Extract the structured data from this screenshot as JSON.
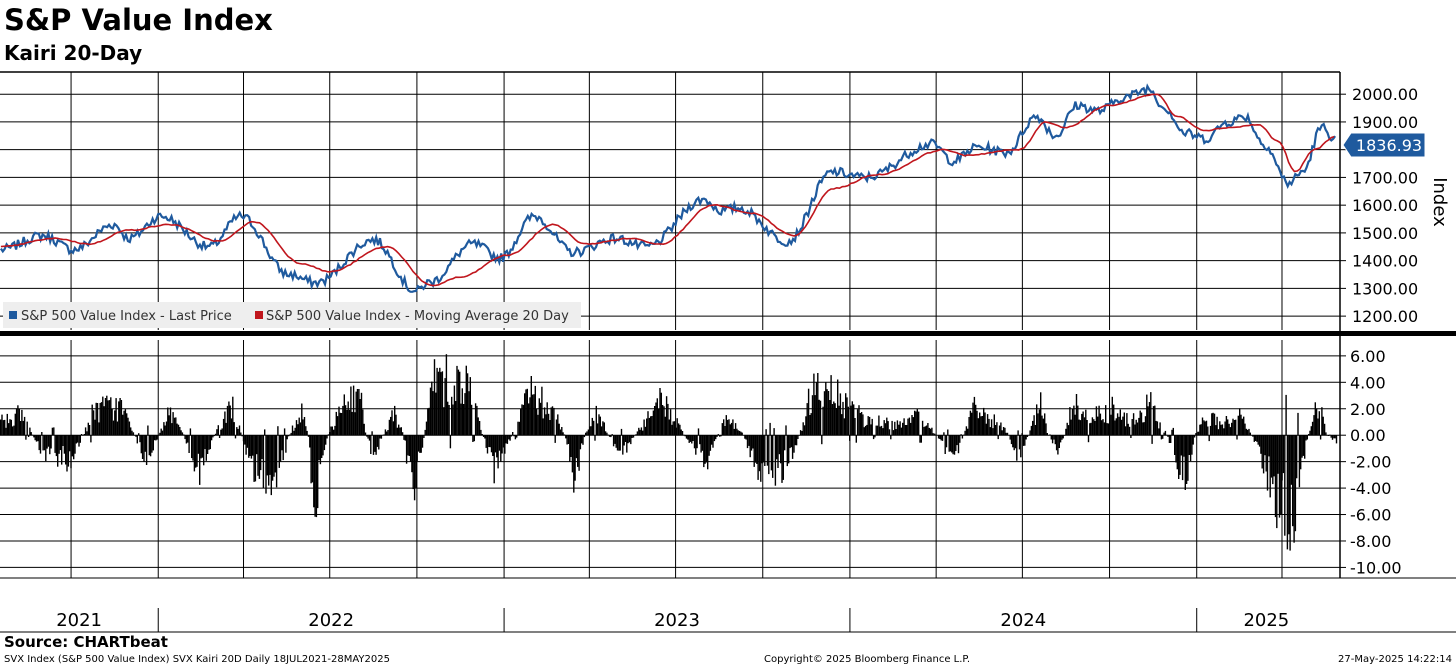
{
  "title": "S&P Value Index",
  "subtitle": "Kairi 20-Day",
  "footer": {
    "source": "Source: CHARTbeat",
    "description": "SVX Index (S&P 500 Value Index) SVX Kairi 20D  Daily 18JUL2021-28MAY2025",
    "copyright": "Copyright© 2025 Bloomberg Finance L.P.",
    "timestamp": "27-May-2025 14:22:14"
  },
  "colors": {
    "price": "#1f5a9e",
    "ma": "#c0161d",
    "kairi": "#000000",
    "badge": "#1f5a9e"
  },
  "chart_data": [
    {
      "type": "line",
      "panel": "top",
      "title": "",
      "ylabel": "Index",
      "ylim": [
        1150,
        2080
      ],
      "yticks": [
        "1200.00",
        "1300.00",
        "1400.00",
        "1500.00",
        "1600.00",
        "1700.00",
        "1800.00",
        "1900.00",
        "2000.00"
      ],
      "last_value_label": "1836.93",
      "grid": true,
      "legend": {
        "placement": "bottom-left",
        "entries": [
          "S&P 500 Value Index - Last Price",
          "S&P 500 Value Index - Moving Average 20 Day"
        ]
      },
      "x_range": [
        "2021-07-18",
        "2025-05-28"
      ],
      "series": [
        {
          "name": "S&P 500 Value Index - Last Price",
          "x": [
            "2021-07-19",
            "2021-09-01",
            "2021-10-04",
            "2021-11-15",
            "2021-12-01",
            "2022-01-04",
            "2022-02-24",
            "2022-03-29",
            "2022-05-19",
            "2022-06-16",
            "2022-08-16",
            "2022-09-30",
            "2022-10-13",
            "2022-11-30",
            "2022-12-28",
            "2023-02-02",
            "2023-03-15",
            "2023-04-28",
            "2023-05-31",
            "2023-07-31",
            "2023-08-18",
            "2023-09-05",
            "2023-10-27",
            "2023-12-14",
            "2024-01-17",
            "2024-03-28",
            "2024-04-19",
            "2024-05-15",
            "2024-06-14",
            "2024-07-16",
            "2024-08-05",
            "2024-08-28",
            "2024-09-19",
            "2024-10-18",
            "2024-11-11",
            "2024-11-29",
            "2024-12-19",
            "2025-01-10",
            "2025-02-03",
            "2025-02-21",
            "2025-03-13",
            "2025-04-08",
            "2025-04-23",
            "2025-05-13",
            "2025-05-28"
          ],
          "values": [
            1440,
            1490,
            1440,
            1530,
            1480,
            1560,
            1450,
            1560,
            1350,
            1320,
            1475,
            1290,
            1320,
            1460,
            1410,
            1560,
            1430,
            1480,
            1450,
            1620,
            1580,
            1590,
            1470,
            1720,
            1700,
            1820,
            1760,
            1810,
            1790,
            1920,
            1850,
            1960,
            1940,
            1990,
            2020,
            1950,
            1860,
            1840,
            1900,
            1920,
            1820,
            1680,
            1720,
            1880,
            1837
          ]
        },
        {
          "name": "S&P 500 Value Index - Moving Average 20 Day",
          "x": [
            "2021-07-19",
            "2021-09-15",
            "2021-10-20",
            "2021-12-01",
            "2022-01-14",
            "2022-03-07",
            "2022-04-12",
            "2022-06-01",
            "2022-07-01",
            "2022-08-30",
            "2022-10-17",
            "2022-11-15",
            "2023-01-05",
            "2023-02-22",
            "2023-03-28",
            "2023-05-15",
            "2023-06-15",
            "2023-08-10",
            "2023-09-20",
            "2023-11-03",
            "2023-12-15",
            "2024-01-30",
            "2024-04-10",
            "2024-05-01",
            "2024-06-28",
            "2024-07-26",
            "2024-08-15",
            "2024-10-01",
            "2024-11-20",
            "2024-12-11",
            "2025-01-10",
            "2025-02-05",
            "2025-03-07",
            "2025-03-28",
            "2025-04-15",
            "2025-05-05",
            "2025-05-28"
          ],
          "values": [
            1450,
            1480,
            1460,
            1510,
            1530,
            1470,
            1540,
            1390,
            1360,
            1450,
            1310,
            1340,
            1420,
            1530,
            1460,
            1480,
            1460,
            1600,
            1570,
            1490,
            1660,
            1710,
            1800,
            1780,
            1800,
            1900,
            1880,
            1960,
            2000,
            1920,
            1870,
            1880,
            1890,
            1830,
            1720,
            1800,
            1850
          ]
        }
      ]
    },
    {
      "type": "bar",
      "panel": "bottom",
      "title": "Kairi 20-Day",
      "ylim": [
        -10.8,
        7.2
      ],
      "yticks": [
        "-10.00",
        "-8.00",
        "-6.00",
        "-4.00",
        "-2.00",
        "0.00",
        "2.00",
        "4.00",
        "6.00"
      ],
      "grid": true,
      "x_range": [
        "2021-07-18",
        "2025-05-28"
      ],
      "episodes": {
        "x": [
          "2021-07-20",
          "2021-08-10",
          "2021-09-01",
          "2021-10-01",
          "2021-10-25",
          "2021-11-22",
          "2021-12-20",
          "2022-01-12",
          "2022-02-12",
          "2022-03-18",
          "2022-04-10",
          "2022-05-05",
          "2022-06-01",
          "2022-06-14",
          "2022-07-12",
          "2022-08-01",
          "2022-08-15",
          "2022-09-06",
          "2022-09-26",
          "2022-10-20",
          "2022-11-25",
          "2022-12-22",
          "2023-01-26",
          "2023-02-24",
          "2023-03-15",
          "2023-04-07",
          "2023-05-04",
          "2023-06-01",
          "2023-06-15",
          "2023-08-03",
          "2023-08-25",
          "2023-09-26",
          "2023-10-25",
          "2023-11-22",
          "2023-12-20",
          "2024-01-17",
          "2024-02-22",
          "2024-03-15",
          "2024-04-18",
          "2024-05-10",
          "2024-06-07",
          "2024-06-25",
          "2024-07-19",
          "2024-08-06",
          "2024-08-22",
          "2024-09-11",
          "2024-10-04",
          "2024-10-22",
          "2024-11-12",
          "2024-12-18",
          "2025-01-10",
          "2025-01-26",
          "2025-02-16",
          "2025-03-10",
          "2025-04-08",
          "2025-04-18",
          "2025-05-08",
          "2025-05-27"
        ],
        "values": [
          1.5,
          2.0,
          -1.6,
          -2.5,
          2.5,
          2.8,
          -2.5,
          2.6,
          -3.5,
          3.0,
          -3.2,
          -4.5,
          2.5,
          -6.8,
          2.5,
          4.0,
          -2.0,
          2.5,
          -5.5,
          6.5,
          4.5,
          -3.5,
          4.5,
          2.0,
          -4.5,
          2.5,
          -2.0,
          1.5,
          3.5,
          -2.5,
          2.0,
          -3.5,
          -3.0,
          4.5,
          3.5,
          1.5,
          1.0,
          1.8,
          -2.5,
          2.5,
          1.0,
          -2.0,
          3.0,
          -1.5,
          3.0,
          2.0,
          2.5,
          1.5,
          3.0,
          -4.5,
          2.0,
          1.0,
          2.0,
          -2.0,
          -9.5,
          -4.5,
          3.5,
          -0.5
        ]
      }
    }
  ],
  "x_axis": {
    "years": [
      "2021",
      "2022",
      "2023",
      "2024",
      "2025"
    ],
    "year_starts": [
      "2021-01-01",
      "2022-01-01",
      "2023-01-01",
      "2024-01-01",
      "2025-01-01"
    ]
  }
}
